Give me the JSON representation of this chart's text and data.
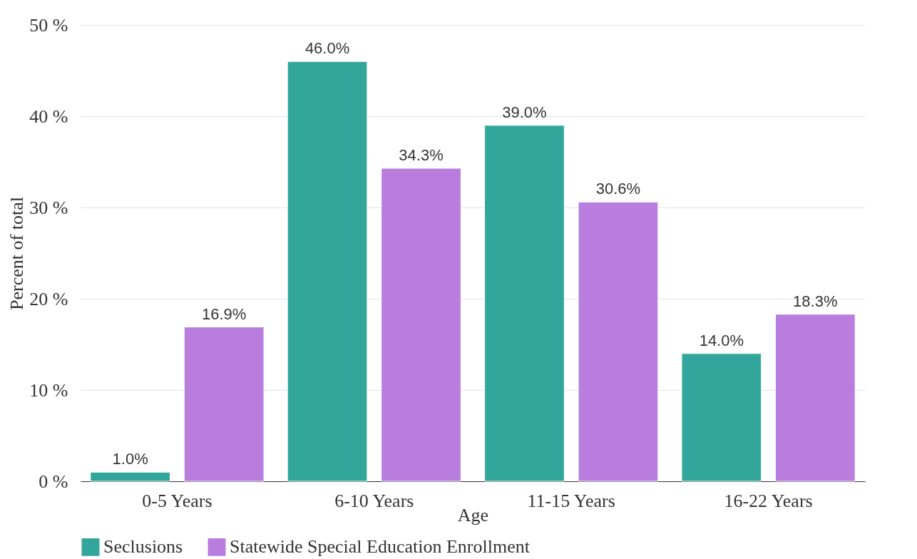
{
  "chart_data": {
    "type": "bar",
    "xlabel": "Age",
    "ylabel": "Percent of total",
    "categories": [
      "0-5 Years",
      "6-10 Years",
      "11-15 Years",
      "16-22 Years"
    ],
    "series": [
      {
        "name": "Seclusions",
        "color": "#33a69b",
        "values": [
          1.0,
          46.0,
          39.0,
          14.0
        ],
        "value_labels": [
          "1.0%",
          "46.0%",
          "39.0%",
          "14.0%"
        ]
      },
      {
        "name": "Statewide Special Education Enrollment",
        "color": "#b87ddf",
        "values": [
          16.9,
          34.3,
          30.6,
          18.3
        ],
        "value_labels": [
          "16.9%",
          "34.3%",
          "30.6%",
          "18.3%"
        ]
      }
    ],
    "ylim": [
      0,
      50
    ],
    "yticks": [
      {
        "value": 0,
        "label": "0 %"
      },
      {
        "value": 10,
        "label": "10 %"
      },
      {
        "value": 20,
        "label": "20 %"
      },
      {
        "value": 30,
        "label": "30 %"
      },
      {
        "value": 40,
        "label": "40 %"
      },
      {
        "value": 50,
        "label": "50 %"
      }
    ],
    "grid": "y",
    "legend": "bottom"
  }
}
